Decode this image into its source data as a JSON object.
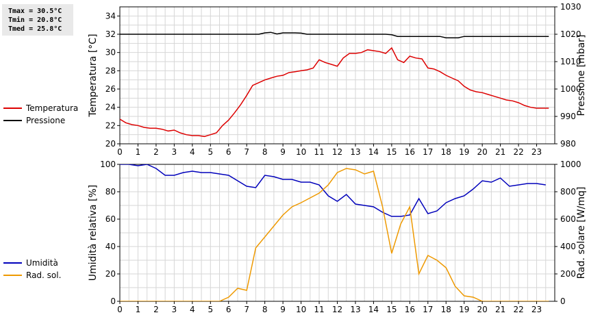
{
  "stats": {
    "tmax": "Tmax = 30.5°C",
    "tmin": "Tmin = 20.8°C",
    "tmed": "Tmed = 25.8°C"
  },
  "chart_data": [
    {
      "type": "line",
      "xlim": [
        0,
        24
      ],
      "x_ticks": [
        0,
        1,
        2,
        3,
        4,
        5,
        6,
        7,
        8,
        9,
        10,
        11,
        12,
        13,
        14,
        15,
        16,
        17,
        18,
        19,
        20,
        21,
        22,
        23
      ],
      "grid": true,
      "legend_position": "left",
      "left_axis": {
        "label": "Temperatura [°C]",
        "ylim": [
          20,
          35
        ],
        "ticks": [
          20,
          22,
          24,
          26,
          28,
          30,
          32,
          34
        ]
      },
      "right_axis": {
        "label": "Pressione [mbar]",
        "ylim": [
          980,
          1030
        ],
        "ticks": [
          980,
          990,
          1000,
          1010,
          1020,
          1030
        ]
      },
      "series": [
        {
          "name": "Temperatura",
          "axis": "left",
          "color": "#dd0000",
          "x": [
            0,
            0.33,
            0.67,
            1,
            1.33,
            1.67,
            2,
            2.33,
            2.67,
            3,
            3.33,
            3.67,
            4,
            4.33,
            4.67,
            5,
            5.33,
            5.67,
            6,
            6.33,
            6.67,
            7,
            7.33,
            7.67,
            8,
            8.33,
            8.67,
            9,
            9.33,
            9.67,
            10,
            10.33,
            10.67,
            11,
            11.33,
            11.67,
            12,
            12.33,
            12.67,
            13,
            13.33,
            13.67,
            14,
            14.33,
            14.67,
            15,
            15.33,
            15.67,
            16,
            16.33,
            16.67,
            17,
            17.33,
            17.67,
            18,
            18.33,
            18.67,
            19,
            19.33,
            19.67,
            20,
            20.33,
            20.67,
            21,
            21.33,
            21.67,
            22,
            22.33,
            22.67,
            23,
            23.33,
            23.67
          ],
          "y": [
            22.7,
            22.3,
            22.1,
            22.0,
            21.8,
            21.7,
            21.7,
            21.6,
            21.4,
            21.5,
            21.2,
            21.0,
            20.9,
            20.9,
            20.8,
            21.0,
            21.2,
            22.0,
            22.6,
            23.4,
            24.3,
            25.3,
            26.4,
            26.7,
            27.0,
            27.2,
            27.4,
            27.5,
            27.8,
            27.9,
            28.0,
            28.1,
            28.3,
            29.2,
            28.9,
            28.7,
            28.5,
            29.4,
            29.9,
            29.9,
            30.0,
            30.3,
            30.2,
            30.1,
            29.9,
            30.5,
            29.2,
            28.9,
            29.6,
            29.4,
            29.3,
            28.3,
            28.2,
            27.9,
            27.5,
            27.2,
            26.9,
            26.3,
            25.9,
            25.7,
            25.6,
            25.4,
            25.2,
            25.0,
            24.8,
            24.7,
            24.5,
            24.2,
            24.0,
            23.9,
            23.9,
            23.9
          ]
        },
        {
          "name": "Pressione",
          "axis": "right",
          "color": "#000000",
          "x": [
            0,
            7.67,
            8,
            8.33,
            8.67,
            9,
            9.33,
            9.67,
            10,
            10.33,
            10.67,
            11,
            14.67,
            15,
            15.33,
            17.67,
            18,
            18.33,
            18.67,
            19,
            23.67
          ],
          "y": [
            1020,
            1020,
            1020.5,
            1020.7,
            1020.1,
            1020.5,
            1020.5,
            1020.5,
            1020.4,
            1020,
            1020,
            1020,
            1020,
            1019.8,
            1019.2,
            1019.2,
            1018.7,
            1018.7,
            1018.7,
            1019.2,
            1019.2
          ]
        }
      ]
    },
    {
      "type": "line",
      "xlim": [
        0,
        24
      ],
      "x_ticks": [
        0,
        1,
        2,
        3,
        4,
        5,
        6,
        7,
        8,
        9,
        10,
        11,
        12,
        13,
        14,
        15,
        16,
        17,
        18,
        19,
        20,
        21,
        22,
        23
      ],
      "grid": true,
      "legend_position": "left",
      "left_axis": {
        "label": "Umidità relativa [%]",
        "ylim": [
          0,
          100
        ],
        "ticks": [
          0,
          20,
          40,
          60,
          80,
          100
        ]
      },
      "right_axis": {
        "label": "Rad. solare [W/mq]",
        "ylim": [
          0,
          1000
        ],
        "ticks": [
          0,
          200,
          400,
          600,
          800,
          1000
        ]
      },
      "series": [
        {
          "name": "Umidità",
          "axis": "left",
          "color": "#0000bb",
          "x": [
            0,
            0.5,
            1,
            1.5,
            2,
            2.5,
            3,
            3.5,
            4,
            4.5,
            5,
            5.5,
            6,
            6.5,
            7,
            7.5,
            8,
            8.5,
            9,
            9.5,
            10,
            10.5,
            11,
            11.5,
            12,
            12.5,
            13,
            13.5,
            14,
            14.5,
            15,
            15.5,
            16,
            16.5,
            17,
            17.5,
            18,
            18.5,
            19,
            19.5,
            20,
            20.5,
            21,
            21.5,
            22,
            22.5,
            23,
            23.5
          ],
          "y": [
            100,
            100,
            99,
            100,
            97,
            92,
            92,
            94,
            95,
            94,
            94,
            93,
            92,
            88,
            84,
            83,
            92,
            91,
            89,
            89,
            87,
            87,
            85,
            77,
            73,
            78,
            71,
            70,
            69,
            65,
            62,
            62,
            63,
            75,
            64,
            66,
            72,
            75,
            77,
            82,
            88,
            87,
            90,
            84,
            85,
            86,
            86,
            85
          ]
        },
        {
          "name": "Rad. sol.",
          "axis": "right",
          "color": "#ee9900",
          "x": [
            0,
            5.5,
            6,
            6.5,
            7,
            7.5,
            8,
            8.5,
            9,
            9.5,
            10,
            10.5,
            11,
            11.5,
            12,
            12.5,
            13,
            13.5,
            14,
            14.5,
            15,
            15.5,
            16,
            16.5,
            17,
            17.5,
            18,
            18.5,
            19,
            19.5,
            20,
            23.67
          ],
          "y": [
            0,
            0,
            30,
            95,
            80,
            390,
            470,
            550,
            630,
            690,
            720,
            755,
            790,
            850,
            940,
            970,
            960,
            930,
            950,
            690,
            350,
            565,
            690,
            200,
            335,
            300,
            245,
            110,
            40,
            30,
            0,
            0
          ]
        }
      ]
    }
  ]
}
